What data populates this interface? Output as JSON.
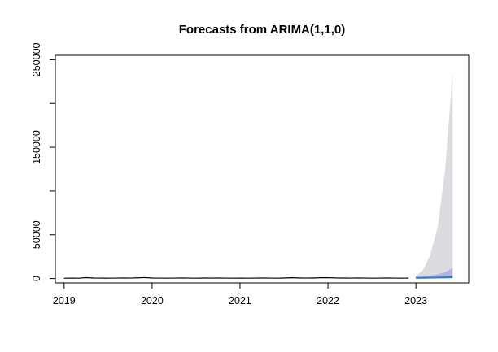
{
  "chart_data": {
    "type": "line",
    "title": "Forecasts from ARIMA(1,1,0)",
    "xlabel": "",
    "ylabel": "",
    "xlim": [
      2018.9,
      2023.6
    ],
    "ylim": [
      -5000,
      255000
    ],
    "x_ticks": [
      2019,
      2020,
      2021,
      2022,
      2023
    ],
    "x_tick_labels": [
      "2019",
      "2020",
      "2021",
      "2022",
      "2023"
    ],
    "y_ticks": [
      0,
      50000,
      100000,
      150000,
      200000,
      250000
    ],
    "y_tick_labels": [
      "0",
      "50000",
      "",
      "150000",
      "",
      "250000"
    ],
    "grid": false,
    "colors": {
      "history": "#000000",
      "forecast_mean": "#2a7fdb",
      "band_95": "#dbdbe0",
      "band_80": "#b3b6d6"
    },
    "series": [
      {
        "role": "history",
        "x": [
          2019.0,
          2019.083,
          2019.167,
          2019.25,
          2019.333,
          2019.417,
          2019.5,
          2019.583,
          2019.667,
          2019.75,
          2019.833,
          2019.917,
          2020.0,
          2020.083,
          2020.167,
          2020.25,
          2020.333,
          2020.417,
          2020.5,
          2020.583,
          2020.667,
          2020.75,
          2020.833,
          2020.917,
          2021.0,
          2021.083,
          2021.167,
          2021.25,
          2021.333,
          2021.417,
          2021.5,
          2021.583,
          2021.667,
          2021.75,
          2021.833,
          2021.917,
          2022.0,
          2022.083,
          2022.167,
          2022.25,
          2022.333,
          2022.417,
          2022.5,
          2022.583,
          2022.667,
          2022.75,
          2022.833,
          2022.917
        ],
        "values": [
          300,
          500,
          400,
          1000,
          600,
          500,
          400,
          500,
          600,
          500,
          800,
          1100,
          600,
          500,
          400,
          500,
          600,
          500,
          400,
          600,
          500,
          600,
          500,
          400,
          500,
          400,
          500,
          600,
          500,
          400,
          600,
          900,
          700,
          500,
          600,
          900,
          1000,
          700,
          600,
          500,
          600,
          500,
          400,
          500,
          600,
          500,
          400,
          500
        ]
      },
      {
        "role": "forecast",
        "x": [
          2023.0,
          2023.083,
          2023.167,
          2023.25,
          2023.333,
          2023.417
        ],
        "mean": [
          800,
          900,
          1000,
          1200,
          1400,
          1700
        ],
        "lo80": [
          300,
          200,
          200,
          200,
          200,
          200
        ],
        "hi80": [
          1500,
          2200,
          3200,
          4800,
          7500,
          12000
        ],
        "lo95": [
          100,
          100,
          100,
          100,
          100,
          100
        ],
        "hi95": [
          3000,
          10000,
          28000,
          60000,
          125000,
          235000
        ]
      }
    ]
  }
}
